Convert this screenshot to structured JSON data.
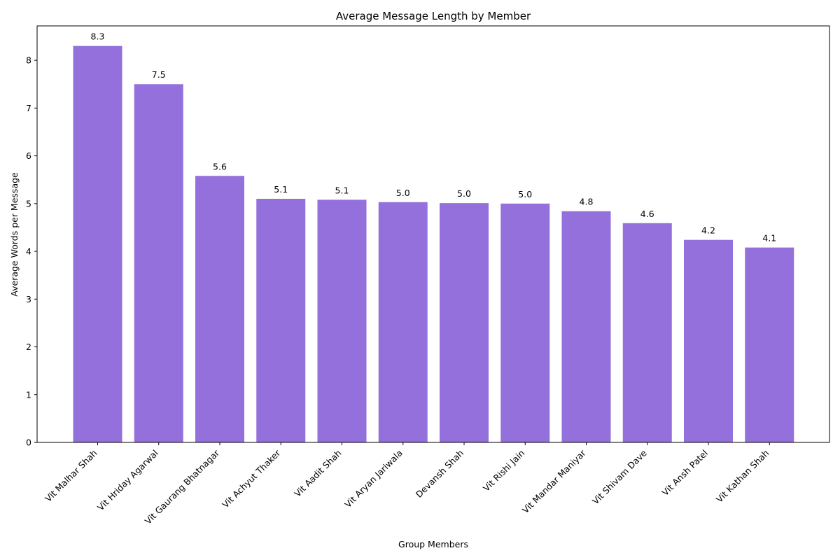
{
  "chart_data": {
    "type": "bar",
    "title": "Average Message Length by Member",
    "xlabel": "Group Members",
    "ylabel": "Average Words per Message",
    "categories": [
      "Vit Malhar Shah",
      "Vit Hriday Agarwal",
      "Vit Gaurang Bhatnagar",
      "Vit Achyut Thaker",
      "Vit Aadit Shah",
      "Vit Aryan Jariwala",
      "Devansh Shah",
      "Vit Rishi Jain",
      "Vit Mandar Maniyar",
      "Vit Shivam Dave",
      "Vit Ansh Patel",
      "Vit Kathan Shah"
    ],
    "values": [
      8.3,
      7.5,
      5.58,
      5.1,
      5.08,
      5.03,
      5.01,
      5.0,
      4.84,
      4.59,
      4.24,
      4.08
    ],
    "data_labels": [
      "8.3",
      "7.5",
      "5.6",
      "5.1",
      "5.1",
      "5.0",
      "5.0",
      "5.0",
      "4.8",
      "4.6",
      "4.2",
      "4.1"
    ],
    "yticks": [
      0,
      1,
      2,
      3,
      4,
      5,
      6,
      7,
      8
    ],
    "ytick_labels": [
      "0",
      "1",
      "2",
      "3",
      "4",
      "5",
      "6",
      "7",
      "8"
    ],
    "ylim": [
      0,
      8.72
    ],
    "bar_color": "#9370db",
    "grid": false,
    "legend": "none"
  }
}
